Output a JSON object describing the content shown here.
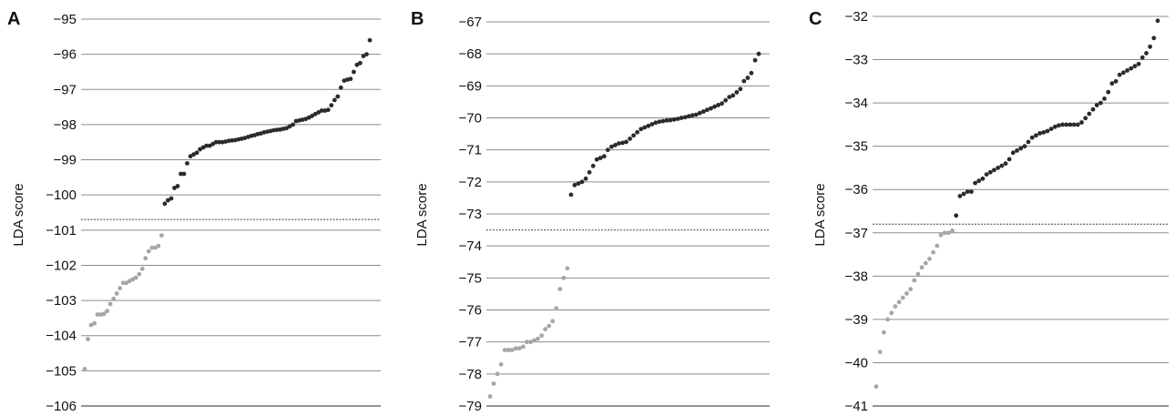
{
  "colors": {
    "grid": "#8c8c8c",
    "axis": "#555555",
    "above_threshold": "#2b2b2b",
    "below_threshold": "#a6a6a6",
    "threshold_line": "#6e6e6e"
  },
  "chart_data": [
    {
      "panel": "A",
      "type": "scatter",
      "ylabel": "LDA score",
      "xlabel": "",
      "ylim": [
        -106,
        -95
      ],
      "yticks": [
        "-95",
        "-96",
        "-97",
        "-98",
        "-99",
        "-100",
        "-101",
        "-102",
        "-103",
        "-104",
        "-105",
        "-106"
      ],
      "grid": true,
      "threshold": -100.7,
      "values": [
        -104.95,
        -104.1,
        -103.7,
        -103.65,
        -103.4,
        -103.4,
        -103.38,
        -103.3,
        -103.1,
        -102.95,
        -102.8,
        -102.65,
        -102.5,
        -102.5,
        -102.45,
        -102.4,
        -102.35,
        -102.25,
        -102.1,
        -101.8,
        -101.6,
        -101.5,
        -101.5,
        -101.45,
        -101.15,
        -100.25,
        -100.15,
        -100.1,
        -99.8,
        -99.75,
        -99.4,
        -99.4,
        -99.1,
        -98.9,
        -98.85,
        -98.8,
        -98.7,
        -98.65,
        -98.6,
        -98.6,
        -98.55,
        -98.5,
        -98.5,
        -98.5,
        -98.48,
        -98.46,
        -98.45,
        -98.44,
        -98.42,
        -98.4,
        -98.38,
        -98.35,
        -98.32,
        -98.3,
        -98.27,
        -98.25,
        -98.22,
        -98.2,
        -98.18,
        -98.16,
        -98.15,
        -98.14,
        -98.12,
        -98.1,
        -98.05,
        -98.0,
        -97.9,
        -97.88,
        -97.86,
        -97.84,
        -97.8,
        -97.75,
        -97.7,
        -97.65,
        -97.6,
        -97.6,
        -97.58,
        -97.45,
        -97.3,
        -97.2,
        -96.95,
        -96.75,
        -96.72,
        -96.7,
        -96.5,
        -96.3,
        -96.25,
        -96.05,
        -96.0,
        -95.6
      ]
    },
    {
      "panel": "B",
      "type": "scatter",
      "ylabel": "LDA score",
      "xlabel": "",
      "ylim": [
        -79,
        -67
      ],
      "yticks": [
        "-67",
        "-68",
        "-69",
        "-70",
        "-71",
        "-72",
        "-73",
        "-74",
        "-75",
        "-76",
        "-77",
        "-78",
        "-79"
      ],
      "grid": true,
      "threshold": -73.5,
      "values": [
        -78.7,
        -78.3,
        -78.0,
        -77.7,
        -77.25,
        -77.25,
        -77.25,
        -77.2,
        -77.2,
        -77.15,
        -77.0,
        -77.0,
        -76.95,
        -76.9,
        -76.8,
        -76.6,
        -76.5,
        -76.35,
        -75.95,
        -75.35,
        -75.0,
        -74.7,
        -72.4,
        -72.1,
        -72.05,
        -72.0,
        -71.9,
        -71.7,
        -71.5,
        -71.3,
        -71.25,
        -71.2,
        -71.0,
        -70.9,
        -70.85,
        -70.8,
        -70.78,
        -70.75,
        -70.65,
        -70.55,
        -70.45,
        -70.35,
        -70.3,
        -70.25,
        -70.2,
        -70.15,
        -70.12,
        -70.1,
        -70.08,
        -70.07,
        -70.05,
        -70.03,
        -70.0,
        -69.98,
        -69.95,
        -69.92,
        -69.9,
        -69.85,
        -69.8,
        -69.75,
        -69.7,
        -69.65,
        -69.6,
        -69.55,
        -69.45,
        -69.35,
        -69.3,
        -69.2,
        -69.1,
        -68.85,
        -68.75,
        -68.6,
        -68.2,
        -68.0
      ]
    },
    {
      "panel": "C",
      "type": "scatter",
      "ylabel": "LDA score",
      "xlabel": "",
      "ylim": [
        -41,
        -32
      ],
      "yticks": [
        "-32",
        "-33",
        "-34",
        "-35",
        "-36",
        "-37",
        "-38",
        "-39",
        "-40",
        "-41"
      ],
      "grid": true,
      "threshold": -36.8,
      "values": [
        -40.55,
        -39.75,
        -39.3,
        -39.0,
        -38.85,
        -38.7,
        -38.6,
        -38.5,
        -38.4,
        -38.3,
        -38.1,
        -37.95,
        -37.8,
        -37.7,
        -37.6,
        -37.45,
        -37.3,
        -37.05,
        -37.0,
        -37.0,
        -36.95,
        -36.6,
        -36.15,
        -36.1,
        -36.05,
        -36.05,
        -35.85,
        -35.8,
        -35.75,
        -35.65,
        -35.6,
        -35.55,
        -35.5,
        -35.45,
        -35.4,
        -35.3,
        -35.15,
        -35.1,
        -35.05,
        -35.0,
        -34.9,
        -34.8,
        -34.75,
        -34.7,
        -34.68,
        -34.65,
        -34.6,
        -34.55,
        -34.52,
        -34.5,
        -34.5,
        -34.5,
        -34.5,
        -34.5,
        -34.45,
        -34.35,
        -34.25,
        -34.15,
        -34.05,
        -34.0,
        -33.9,
        -33.75,
        -33.55,
        -33.5,
        -33.35,
        -33.3,
        -33.25,
        -33.2,
        -33.15,
        -33.1,
        -32.95,
        -32.85,
        -32.7,
        -32.5,
        -32.1
      ]
    }
  ]
}
